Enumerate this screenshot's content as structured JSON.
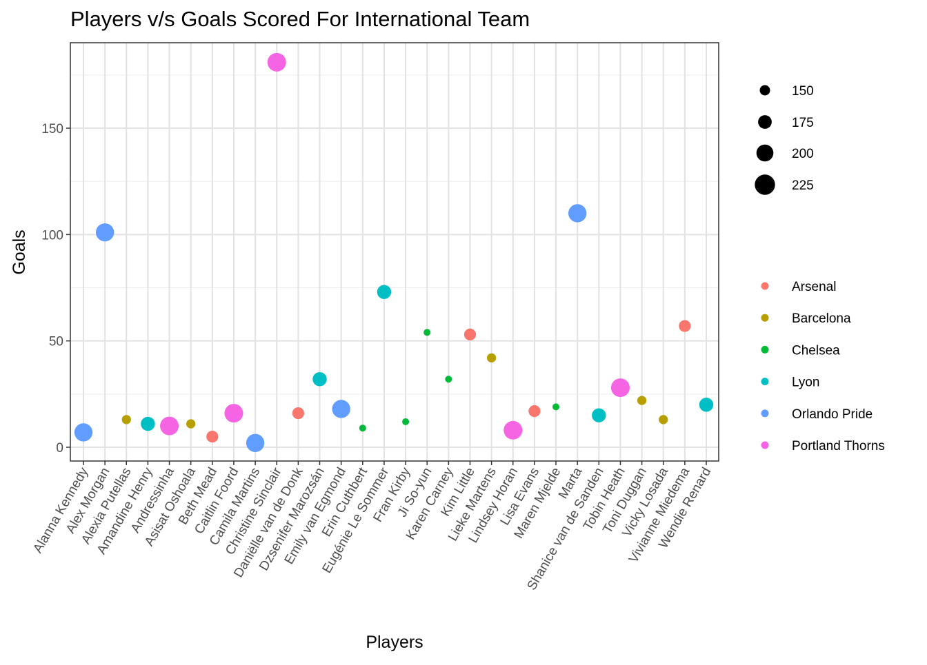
{
  "chart_data": {
    "type": "scatter",
    "title": "Players v/s Goals Scored For International Team",
    "xlabel": "Players",
    "ylabel": "Goals",
    "ylim": [
      -6,
      190
    ],
    "yticks": [
      0,
      50,
      100,
      150
    ],
    "grid": true,
    "legend_position": "right",
    "size_legend": {
      "values": [
        150,
        175,
        200,
        225
      ]
    },
    "colors": {
      "Arsenal": "#F8766D",
      "Barcelona": "#B79F00",
      "Chelsea": "#00BA38",
      "Lyon": "#00BFC4",
      "Orlando Pride": "#619CFF",
      "Portland Thorns": "#F564E3"
    },
    "series_order": [
      "Arsenal",
      "Barcelona",
      "Chelsea",
      "Lyon",
      "Orlando Pride",
      "Portland Thorns"
    ],
    "points": [
      {
        "player": "Alanna Kennedy",
        "goals": 7,
        "team": "Orlando Pride",
        "size": 230
      },
      {
        "player": "Alex Morgan",
        "goals": 101,
        "team": "Orlando Pride",
        "size": 230
      },
      {
        "player": "Alexia Putellas",
        "goals": 13,
        "team": "Barcelona",
        "size": 130
      },
      {
        "player": "Amandine Henry",
        "goals": 11,
        "team": "Lyon",
        "size": 185
      },
      {
        "player": "Andressinha",
        "goals": 10,
        "team": "Portland Thorns",
        "size": 235
      },
      {
        "player": "Asisat Oshoala",
        "goals": 11,
        "team": "Barcelona",
        "size": 130
      },
      {
        "player": "Beth Mead",
        "goals": 5,
        "team": "Arsenal",
        "size": 160
      },
      {
        "player": "Caitlin Foord",
        "goals": 16,
        "team": "Portland Thorns",
        "size": 235
      },
      {
        "player": "Camila Martins",
        "goals": 2,
        "team": "Orlando Pride",
        "size": 230
      },
      {
        "player": "Christine Sinclair",
        "goals": 181,
        "team": "Portland Thorns",
        "size": 235
      },
      {
        "player": "Daniëlle van de Donk",
        "goals": 16,
        "team": "Arsenal",
        "size": 160
      },
      {
        "player": "Dzsenifer Marozsán",
        "goals": 32,
        "team": "Lyon",
        "size": 185
      },
      {
        "player": "Emily van Egmond",
        "goals": 18,
        "team": "Orlando Pride",
        "size": 230
      },
      {
        "player": "Erin Cuthbert",
        "goals": 9,
        "team": "Chelsea",
        "size": 105
      },
      {
        "player": "Eugénie Le Sommer",
        "goals": 73,
        "team": "Lyon",
        "size": 185
      },
      {
        "player": "Fran Kirby",
        "goals": 12,
        "team": "Chelsea",
        "size": 105
      },
      {
        "player": "Ji So-yun",
        "goals": 54,
        "team": "Chelsea",
        "size": 105
      },
      {
        "player": "Karen Carney",
        "goals": 32,
        "team": "Chelsea",
        "size": 105
      },
      {
        "player": "Kim Little",
        "goals": 53,
        "team": "Arsenal",
        "size": 160
      },
      {
        "player": "Lieke Martens",
        "goals": 42,
        "team": "Barcelona",
        "size": 130
      },
      {
        "player": "Lindsey Horan",
        "goals": 8,
        "team": "Portland Thorns",
        "size": 235
      },
      {
        "player": "Lisa Evans",
        "goals": 17,
        "team": "Arsenal",
        "size": 160
      },
      {
        "player": "Maren Mjelde",
        "goals": 19,
        "team": "Chelsea",
        "size": 105
      },
      {
        "player": "Marta",
        "goals": 110,
        "team": "Orlando Pride",
        "size": 230
      },
      {
        "player": "Shanice van de Sanden",
        "goals": 15,
        "team": "Lyon",
        "size": 185
      },
      {
        "player": "Tobin Heath",
        "goals": 28,
        "team": "Portland Thorns",
        "size": 235
      },
      {
        "player": "Toni Duggan",
        "goals": 22,
        "team": "Barcelona",
        "size": 130
      },
      {
        "player": "Vicky Losada",
        "goals": 13,
        "team": "Barcelona",
        "size": 130
      },
      {
        "player": "Vivianne Miedema",
        "goals": 57,
        "team": "Arsenal",
        "size": 160
      },
      {
        "player": "Wendie Renard",
        "goals": 20,
        "team": "Lyon",
        "size": 185
      }
    ]
  }
}
